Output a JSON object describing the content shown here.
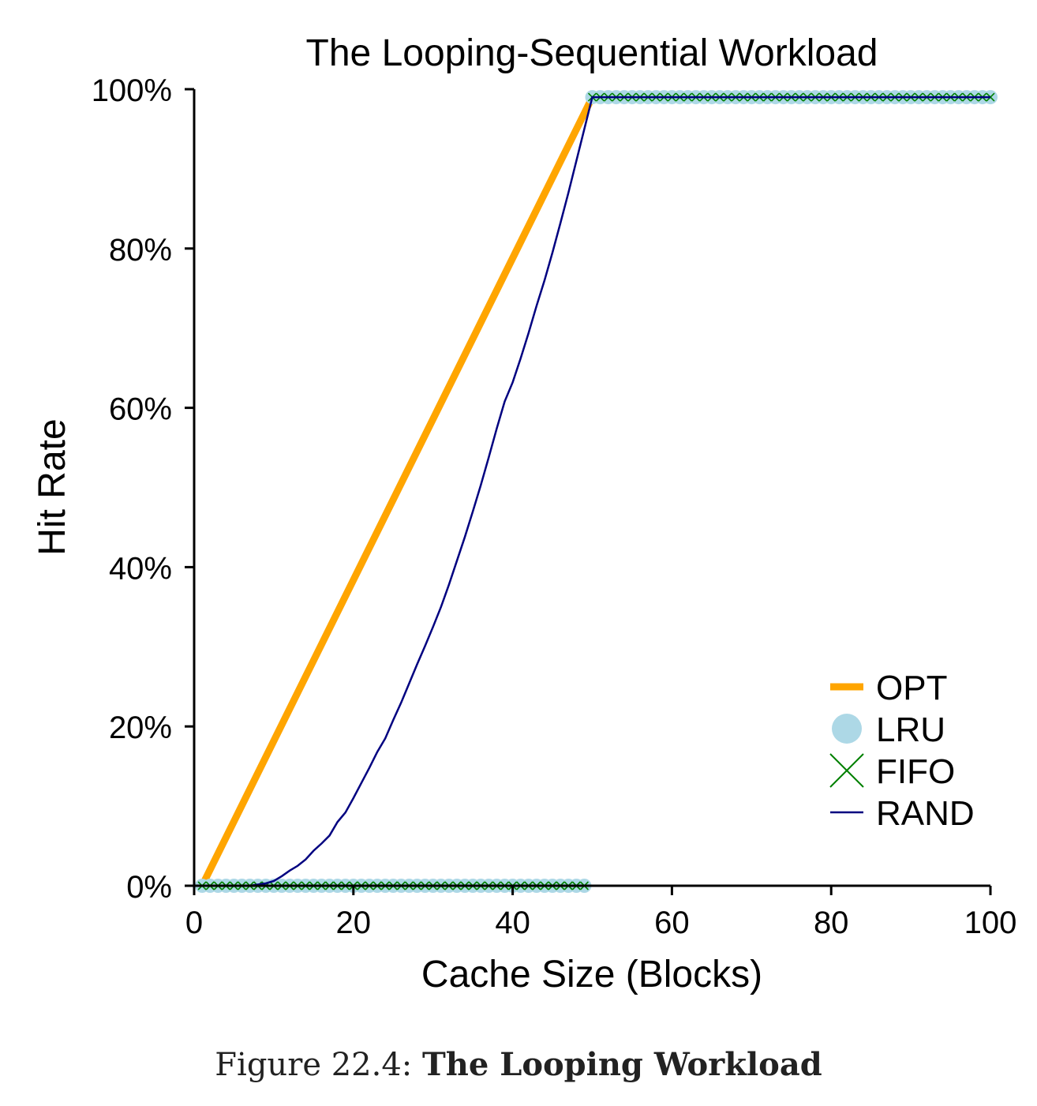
{
  "chart_data": {
    "type": "line",
    "title": "The Looping-Sequential Workload",
    "xlabel": "Cache Size (Blocks)",
    "ylabel": "Hit Rate",
    "xlim": [
      0,
      100
    ],
    "ylim": [
      0,
      100
    ],
    "xticks": [
      0,
      20,
      40,
      60,
      80,
      100
    ],
    "xtick_labels": [
      "0",
      "20",
      "40",
      "60",
      "80",
      "100"
    ],
    "yticks": [
      0,
      20,
      40,
      60,
      80,
      100
    ],
    "ytick_labels": [
      "0%",
      "20%",
      "40%",
      "60%",
      "80%",
      "100%"
    ],
    "grid": false,
    "legend_position": "lower-right",
    "series": [
      {
        "name": "OPT",
        "style": "thick-line",
        "color": "#FFA500",
        "x": [
          1,
          50,
          51,
          100
        ],
        "y": [
          0,
          99,
          99,
          99
        ]
      },
      {
        "name": "LRU",
        "style": "circle-markers",
        "color": "#ADD8E6",
        "x_ranges": [
          [
            1,
            49
          ],
          [
            50,
            100
          ]
        ],
        "y_by_range": [
          0,
          99
        ]
      },
      {
        "name": "FIFO",
        "style": "x-markers",
        "color": "#008000",
        "x_ranges": [
          [
            1,
            49
          ],
          [
            50,
            100
          ]
        ],
        "y_by_range": [
          0,
          99
        ]
      },
      {
        "name": "RAND",
        "style": "thin-line",
        "color": "#000080",
        "x": [
          1,
          4,
          7,
          9,
          10,
          11,
          12,
          13,
          14,
          15,
          16,
          17,
          18,
          19,
          20,
          21,
          22,
          23,
          24,
          25,
          26,
          27,
          28,
          29,
          30,
          31,
          32,
          33,
          34,
          35,
          36,
          37,
          38,
          39,
          40,
          41,
          42,
          43,
          44,
          45,
          46,
          47,
          48,
          49,
          50,
          55,
          60,
          70,
          80,
          90,
          100
        ],
        "y": [
          0,
          0,
          0,
          0.3,
          0.6,
          1.2,
          1.9,
          2.5,
          3.3,
          4.4,
          5.3,
          6.3,
          8,
          9.2,
          11,
          12.9,
          14.8,
          16.8,
          18.5,
          20.8,
          23,
          25.4,
          27.8,
          30.1,
          32.5,
          35,
          37.8,
          40.8,
          43.8,
          47,
          50.3,
          53.8,
          57.4,
          60.8,
          63.2,
          66.2,
          69.4,
          72.8,
          76,
          79.5,
          83.2,
          87,
          91,
          95,
          99,
          99,
          99,
          99,
          99,
          99,
          99
        ]
      }
    ]
  },
  "caption": {
    "prefix": "Figure 22.4:",
    "title": "The Looping Workload"
  }
}
